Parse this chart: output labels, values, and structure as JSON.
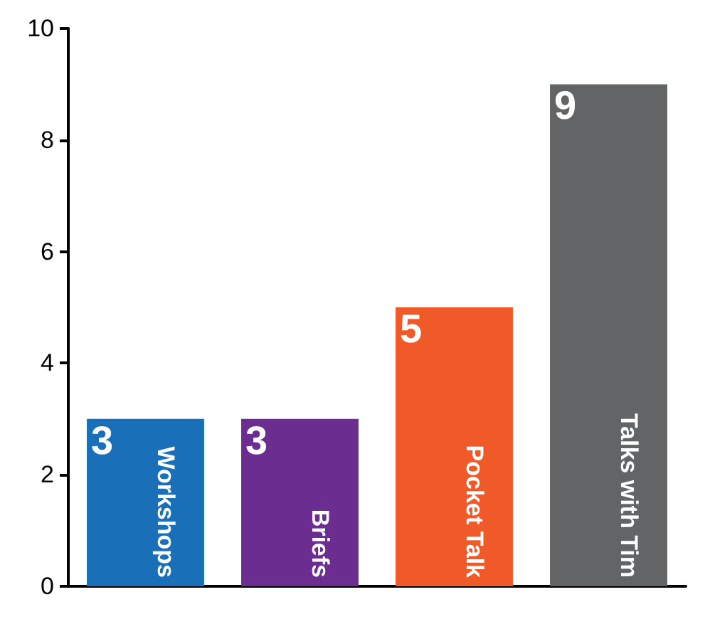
{
  "chart_data": {
    "type": "bar",
    "categories": [
      "Workshops",
      "Briefs",
      "Pocket Talk",
      "Talks with Tim"
    ],
    "values": [
      3,
      3,
      5,
      9
    ],
    "colors": [
      "#1a6fb9",
      "#6b2d8f",
      "#f05a28",
      "#636466"
    ],
    "ylim": [
      0,
      10
    ],
    "yticks": [
      0,
      2,
      4,
      6,
      8,
      10
    ],
    "grid": false,
    "data_labels": true
  }
}
